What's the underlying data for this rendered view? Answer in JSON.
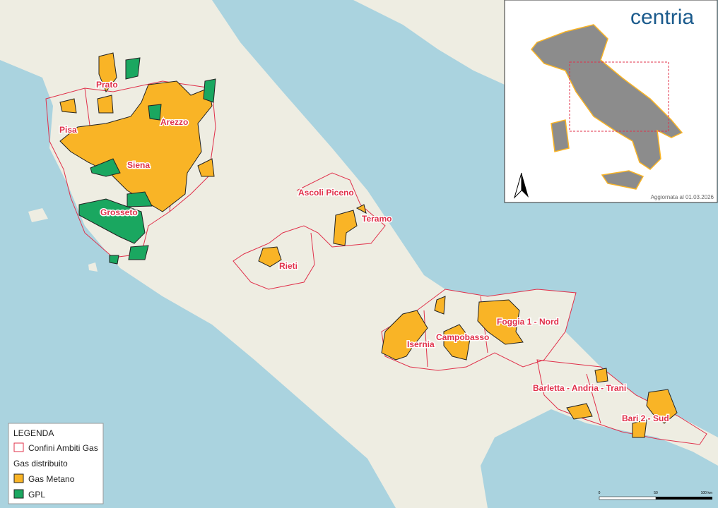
{
  "map": {
    "labels": [
      "Prato",
      "Pisa",
      "Arezzo",
      "Siena",
      "Grosseto",
      "Ascoli Piceno",
      "Teramo",
      "Rieti",
      "Isernia",
      "Campobasso",
      "Foggia 1 - Nord",
      "Barletta - Andria - Trani",
      "Bari 2 - Sud"
    ]
  },
  "legend": {
    "title": "LEGENDA",
    "boundary": "Confini Ambiti Gas",
    "section": "Gas distribuito",
    "items": [
      "Gas Metano",
      "GPL"
    ]
  },
  "inset": {
    "logo": "centria",
    "updated": "Aggiornata al 01.03.2026"
  },
  "scale": [
    "0",
    "50",
    "100 km"
  ]
}
